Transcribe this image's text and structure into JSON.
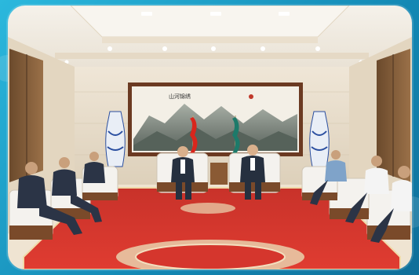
{
  "image": {
    "description_icon": "meeting-room-photo",
    "painting_inscription": "山河锦绣",
    "colors": {
      "frame": "#1fa3c9",
      "carpet": "#d5362d",
      "wall": "#e9dfcf",
      "ceiling": "#f1ece4",
      "chair": "#f4f2ee",
      "suit": "#26303f"
    }
  }
}
